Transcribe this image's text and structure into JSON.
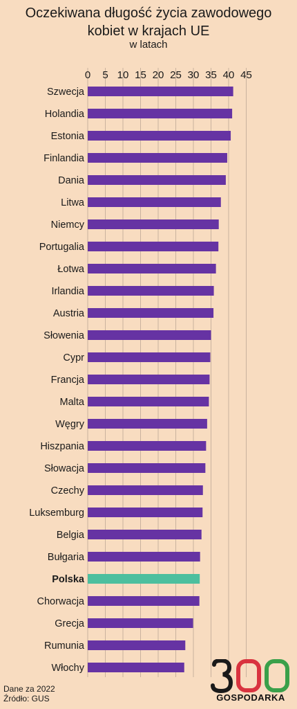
{
  "header": {
    "title_line1": "Oczekiwana długość życia zawodowego",
    "title_line2": "kobiet w krajach UE",
    "subtitle": "w latach"
  },
  "footer": {
    "line1": "Dane za 2022",
    "line2": "Źródło: GUS"
  },
  "logo": {
    "number": "300",
    "word": "GOSPODARKA",
    "colors": {
      "three": "#1a1a1a",
      "zero1": "#d9333f",
      "zero2": "#3aa04a"
    }
  },
  "colors": {
    "background": "#f8dcc0",
    "bar": "#6633a3",
    "highlight": "#4dbf9e",
    "grid": "#c9b29e"
  },
  "chart_data": {
    "type": "bar",
    "orientation": "horizontal",
    "title": "Oczekiwana długość życia zawodowego kobiet w krajach UE",
    "subtitle": "w latach",
    "xlim": [
      0,
      45
    ],
    "ticks": [
      0,
      5,
      10,
      15,
      20,
      25,
      30,
      35,
      40,
      45
    ],
    "grid": true,
    "highlight": "Polska",
    "categories": [
      "Szwecja",
      "Holandia",
      "Estonia",
      "Finlandia",
      "Dania",
      "Litwa",
      "Niemcy",
      "Portugalia",
      "Łotwa",
      "Irlandia",
      "Austria",
      "Słowenia",
      "Cypr",
      "Francja",
      "Malta",
      "Węgry",
      "Hiszpania",
      "Słowacja",
      "Czechy",
      "Luksemburg",
      "Belgia",
      "Bułgaria",
      "Polska",
      "Chorwacja",
      "Grecja",
      "Rumunia",
      "Włochy"
    ],
    "values": [
      41.3,
      41.0,
      40.6,
      39.6,
      39.2,
      37.8,
      37.2,
      37.1,
      36.4,
      35.8,
      35.7,
      35.0,
      34.8,
      34.6,
      34.4,
      33.9,
      33.6,
      33.4,
      32.7,
      32.6,
      32.3,
      31.9,
      31.8,
      31.7,
      29.9,
      27.7,
      27.4
    ]
  }
}
